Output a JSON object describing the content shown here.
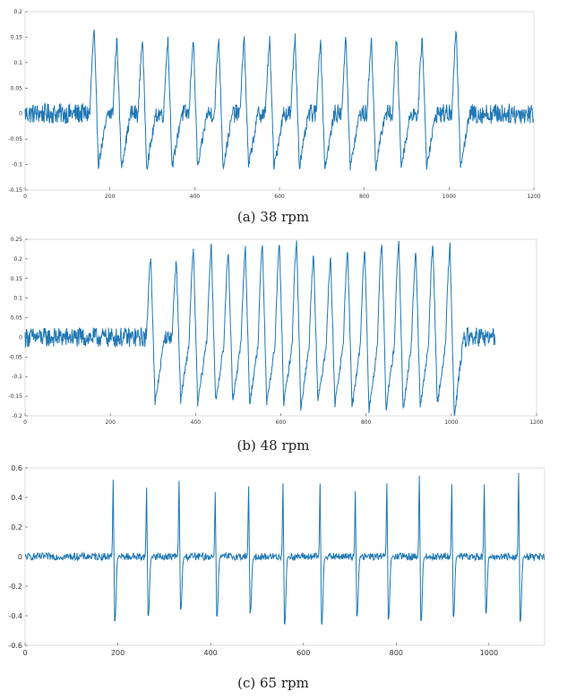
{
  "chart_data": [
    {
      "type": "line",
      "caption": "(a) 38 rpm",
      "xlim": [
        0,
        1200
      ],
      "ylim": [
        -0.15,
        0.2
      ],
      "xticks": [
        0,
        200,
        400,
        600,
        800,
        1000,
        1200
      ],
      "yticks": [
        -0.15,
        -0.1,
        -0.05,
        0,
        0.05,
        0.1,
        0.15,
        0.2
      ],
      "xtick_labels": [
        "0",
        "200",
        "400",
        "600",
        "800",
        "1000",
        "1200"
      ],
      "ytick_labels": [
        "-0.15",
        "-0.1",
        "-0.05",
        "0",
        "0.05",
        "0.1",
        "0.15",
        "0.2"
      ],
      "grid": false,
      "line_color": "#1f77b4",
      "signal": {
        "length": 1200,
        "noise_amplitude": 0.02,
        "peak_x": [
          163,
          217,
          277,
          337,
          397,
          457,
          517,
          577,
          637,
          697,
          757,
          817,
          877,
          937,
          1017
        ],
        "peak_y": [
          0.162,
          0.144,
          0.146,
          0.145,
          0.144,
          0.147,
          0.145,
          0.143,
          0.148,
          0.145,
          0.146,
          0.144,
          0.148,
          0.148,
          0.16
        ],
        "trough_y": [
          -0.1,
          -0.105,
          -0.105,
          -0.107,
          -0.108,
          -0.106,
          -0.105,
          -0.108,
          -0.104,
          -0.107,
          -0.107,
          -0.106,
          -0.104,
          -0.102,
          -0.1
        ],
        "active_range": [
          160,
          1030
        ]
      }
    },
    {
      "type": "line",
      "caption": "(b) 48 rpm",
      "xlim": [
        0,
        1200
      ],
      "ylim": [
        -0.2,
        0.25
      ],
      "xticks": [
        0,
        200,
        400,
        600,
        800,
        1000,
        1200
      ],
      "yticks": [
        -0.2,
        -0.15,
        -0.1,
        -0.05,
        0,
        0.05,
        0.1,
        0.15,
        0.2,
        0.25
      ],
      "xtick_labels": [
        "0",
        "200",
        "400",
        "600",
        "800",
        "1000",
        "1200"
      ],
      "ytick_labels": [
        "-0.2",
        "-0.15",
        "-0.1",
        "-0.05",
        "0",
        "0.05",
        "0.1",
        "0.15",
        "0.2",
        "0.25"
      ],
      "grid": false,
      "line_color": "#1f77b4",
      "signal": {
        "length": 1105,
        "noise_amplitude": 0.025,
        "peak_x": [
          295,
          355,
          395,
          437,
          477,
          517,
          557,
          597,
          637,
          677,
          717,
          757,
          797,
          837,
          877,
          917,
          957,
          997
        ],
        "peak_y": [
          0.21,
          0.195,
          0.22,
          0.23,
          0.22,
          0.225,
          0.235,
          0.24,
          0.25,
          0.21,
          0.2,
          0.22,
          0.225,
          0.245,
          0.25,
          0.22,
          0.24,
          0.235
        ],
        "trough_y": [
          -0.17,
          -0.16,
          -0.17,
          -0.165,
          -0.16,
          -0.17,
          -0.17,
          -0.17,
          -0.18,
          -0.165,
          -0.17,
          -0.18,
          -0.19,
          -0.18,
          -0.185,
          -0.18,
          -0.17,
          -0.2
        ],
        "active_range": [
          290,
          1010
        ]
      }
    },
    {
      "type": "line",
      "caption": "(c) 65 rpm",
      "xlim": [
        0,
        1120
      ],
      "ylim": [
        -0.6,
        0.6
      ],
      "xticks": [
        0,
        200,
        400,
        600,
        800,
        1000
      ],
      "yticks": [
        -0.6,
        -0.4,
        -0.2,
        0,
        0.2,
        0.4,
        0.6
      ],
      "xtick_labels": [
        "0",
        "200",
        "400",
        "600",
        "800",
        "1000"
      ],
      "ytick_labels": [
        "-0.6",
        "-0.4",
        "-0.2",
        "0",
        "0.2",
        "0.4",
        "0.6"
      ],
      "grid": false,
      "line_color": "#1f77b4",
      "signal": {
        "length": 1120,
        "noise_amplitude": 0.025,
        "peak_x": [
          190,
          262,
          332,
          410,
          482,
          556,
          636,
          712,
          780,
          850,
          920,
          990,
          1064
        ],
        "peak_y": [
          0.52,
          0.47,
          0.52,
          0.43,
          0.48,
          0.5,
          0.49,
          0.44,
          0.5,
          0.55,
          0.49,
          0.49,
          0.56
        ],
        "trough_y": [
          -0.43,
          -0.4,
          -0.36,
          -0.4,
          -0.38,
          -0.45,
          -0.45,
          -0.4,
          -0.42,
          -0.43,
          -0.4,
          -0.38,
          -0.44
        ]
      }
    }
  ]
}
